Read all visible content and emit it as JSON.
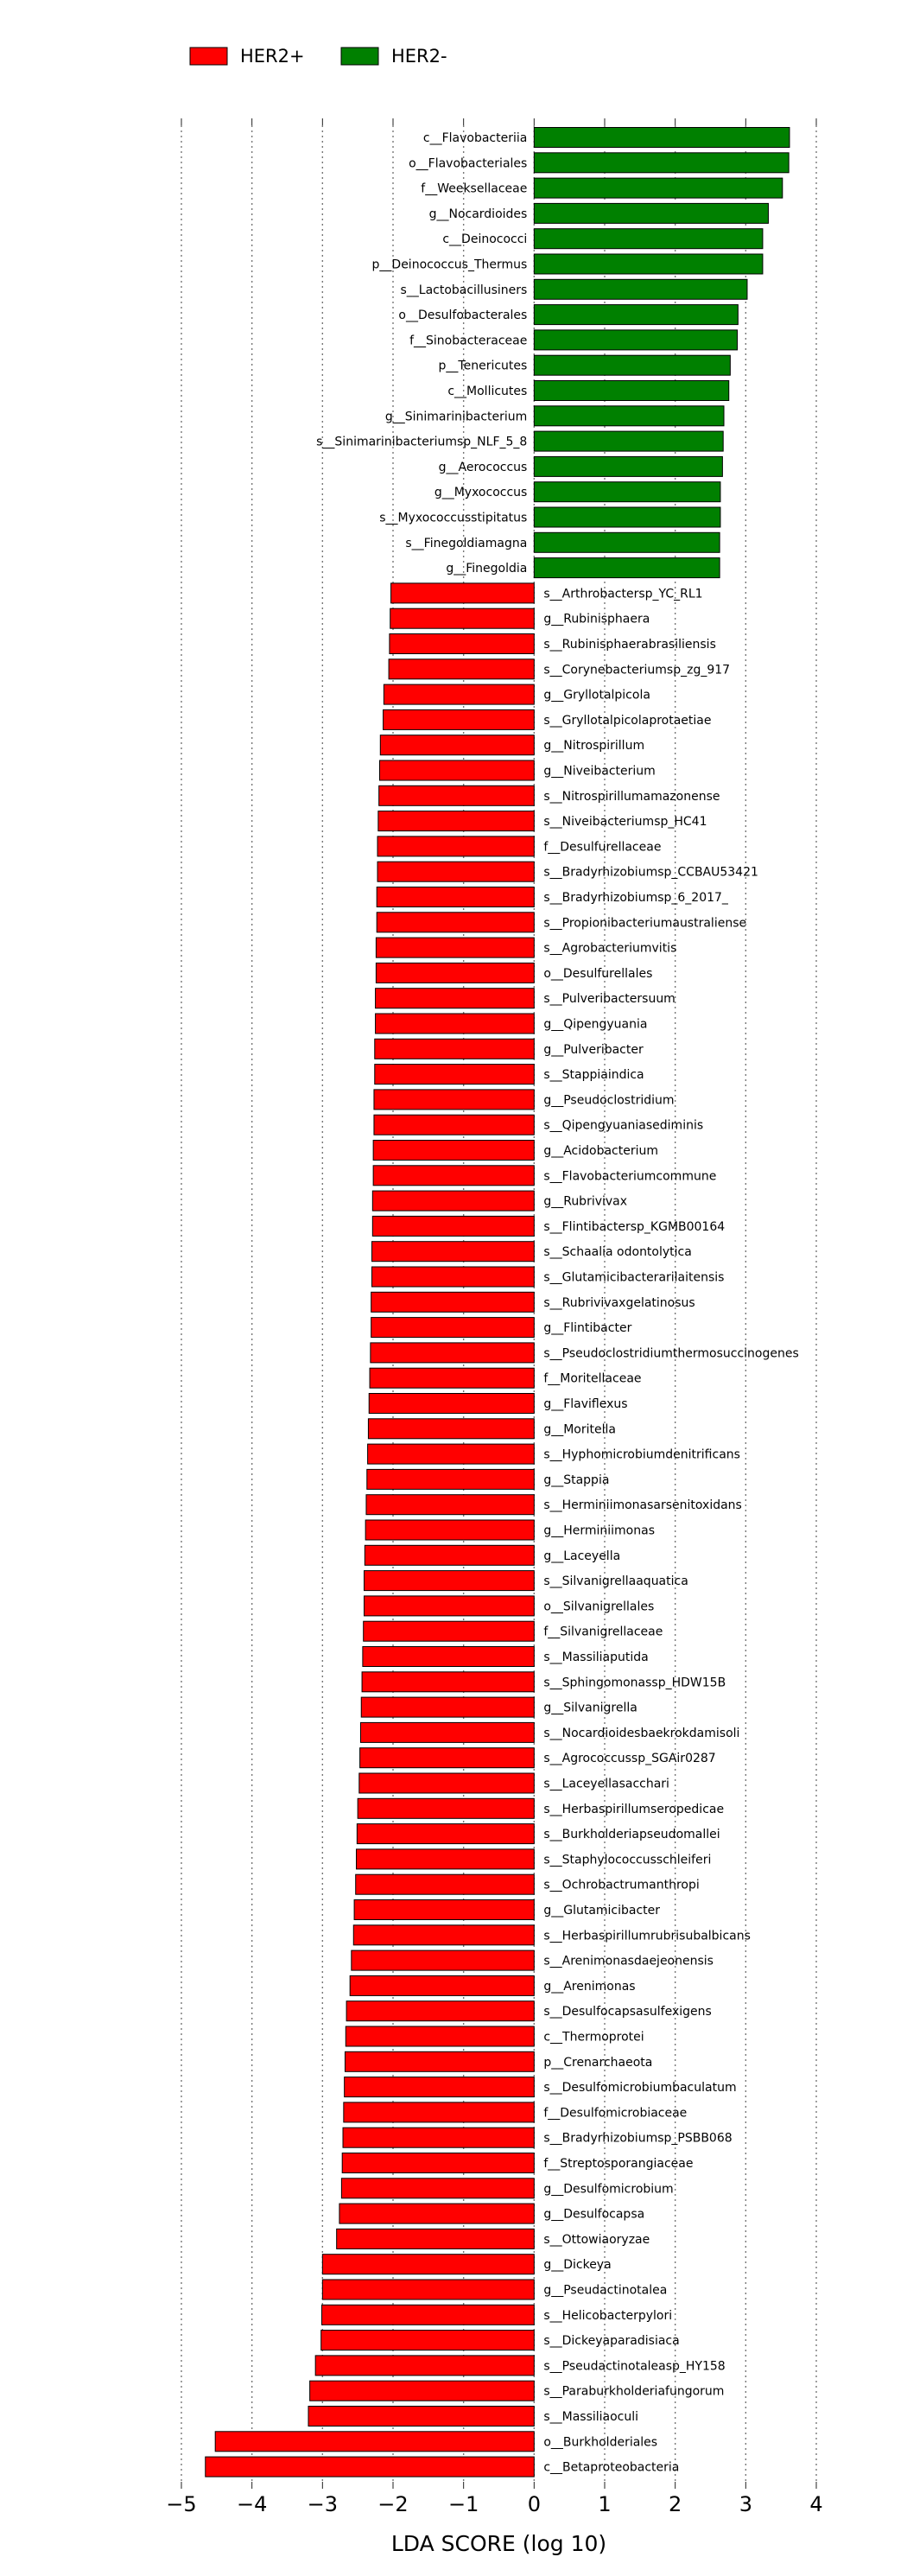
{
  "legend": {
    "position": "top-left",
    "items": [
      {
        "label": "HER2+",
        "color": "#ff0000"
      },
      {
        "label": "HER2-",
        "color": "#008000"
      }
    ]
  },
  "chart_data": {
    "type": "bar",
    "orientation": "horizontal",
    "xlabel": "LDA SCORE (log 10)",
    "xlim": [
      -5,
      4
    ],
    "xticks": [
      -5,
      -4,
      -3,
      -2,
      -1,
      0,
      1,
      2,
      3,
      4
    ],
    "grid": "vertical dotted",
    "series": [
      {
        "name": "HER2-",
        "color": "#008000",
        "categories": [
          "c__Flavobacteriia",
          "o__Flavobacteriales",
          "f__Weeksellaceae",
          "g__Nocardioides",
          "c__Deinococci",
          "p__Deinococcus_Thermus",
          "s__Lactobacillusiners",
          "o__Desulfobacterales",
          "f__Sinobacteraceae",
          "p__Tenericutes",
          "c__Mollicutes",
          "g__Sinimarinibacterium",
          "s__Sinimarinibacteriumsp_NLF_5_8",
          "g__Aerococcus",
          "g__Myxococcus",
          "s__Myxococcusstipitatus",
          "s__Finegoldiamagna",
          "g__Finegoldia"
        ],
        "values": [
          3.62,
          3.61,
          3.52,
          3.32,
          3.24,
          3.24,
          3.02,
          2.89,
          2.88,
          2.78,
          2.76,
          2.69,
          2.68,
          2.67,
          2.64,
          2.64,
          2.63,
          2.63
        ]
      },
      {
        "name": "HER2+",
        "color": "#ff0000",
        "categories": [
          "s__Arthrobactersp_YC_RL1",
          "g__Rubinisphaera",
          "s__Rubinisphaerabrasiliensis",
          "s__Corynebacteriumsp_zg_917",
          "g__Gryllotalpicola",
          "s__Gryllotalpicolaprotaetiae",
          "g__Nitrospirillum",
          "g__Niveibacterium",
          "s__Nitrospirillumamazonense",
          "s__Niveibacteriumsp_HC41",
          "f__Desulfurellaceae",
          "s__Bradyrhizobiumsp_CCBAU53421",
          "s__Bradyrhizobiumsp_6_2017_",
          "s__Propionibacteriumaustraliense",
          "s__Agrobacteriumvitis",
          "o__Desulfurellales",
          "s__Pulveribactersuum",
          "g__Qipengyuania",
          "g__Pulveribacter",
          "s__Stappiaindica",
          "g__Pseudoclostridium",
          "s__Qipengyuaniasediminis",
          "g__Acidobacterium",
          "s__Flavobacteriumcommune",
          "g__Rubrivivax",
          "s__Flintibactersp_KGMB00164",
          "s__Schaalia odontolytica",
          "s__Glutamicibacterarilaitensis",
          "s__Rubrivivaxgelatinosus",
          "g__Flintibacter",
          "s__Pseudoclostridiumthermosuccinogenes",
          "f__Moritellaceae",
          "g__Flaviflexus",
          "g__Moritella",
          "s__Hyphomicrobiumdenitrificans",
          "g__Stappia",
          "s__Herminiimonasarsenitoxidans",
          "g__Herminiimonas",
          "g__Laceyella",
          "s__Silvanigrellaaquatica",
          "o__Silvanigrellales",
          "f__Silvanigrellaceae",
          "s__Massiliaputida",
          "s__Sphingomonassp_HDW15B",
          "g__Silvanigrella",
          "s__Nocardioidesbaekrokdamisoli",
          "s__Agrococcussp_SGAir0287",
          "s__Laceyellasacchari",
          "s__Herbaspirillumseropedicae",
          "s__Burkholderiapseudomallei",
          "s__Staphylococcusschleiferi",
          "s__Ochrobactrumanthropi",
          "g__Glutamicibacter",
          "s__Herbaspirillumrubrisubalbicans",
          "s__Arenimonasdaejeonensis",
          "g__Arenimonas",
          "s__Desulfocapsasulfexigens",
          "c__Thermoprotei",
          "p__Crenarchaeota",
          "s__Desulfomicrobiumbaculatum",
          "f__Desulfomicrobiaceae",
          "s__Bradyrhizobiumsp_PSBB068",
          "f__Streptosporangiaceae",
          "g__Desulfomicrobium",
          "g__Desulfocapsa",
          "s__Ottowiaoryzae",
          "g__Dickeya",
          "g__Pseudactinotalea",
          "s__Helicobacterpylori",
          "s__Dickeyaparadisiaca",
          "s__Pseudactinotaleasp_HY158",
          "s__Paraburkholderiafungorum",
          "s__Massiliaoculi",
          "o__Burkholderiales",
          "c__Betaproteobacteria"
        ],
        "values": [
          -2.03,
          -2.04,
          -2.05,
          -2.06,
          -2.13,
          -2.14,
          -2.18,
          -2.19,
          -2.2,
          -2.21,
          -2.22,
          -2.22,
          -2.23,
          -2.23,
          -2.24,
          -2.24,
          -2.25,
          -2.25,
          -2.26,
          -2.26,
          -2.27,
          -2.27,
          -2.28,
          -2.28,
          -2.29,
          -2.29,
          -2.3,
          -2.3,
          -2.31,
          -2.31,
          -2.32,
          -2.33,
          -2.34,
          -2.35,
          -2.36,
          -2.37,
          -2.38,
          -2.39,
          -2.4,
          -2.41,
          -2.41,
          -2.42,
          -2.43,
          -2.44,
          -2.45,
          -2.46,
          -2.47,
          -2.48,
          -2.5,
          -2.51,
          -2.52,
          -2.53,
          -2.55,
          -2.56,
          -2.59,
          -2.61,
          -2.66,
          -2.67,
          -2.68,
          -2.69,
          -2.7,
          -2.71,
          -2.72,
          -2.73,
          -2.76,
          -2.8,
          -3.0,
          -3.0,
          -3.01,
          -3.02,
          -3.1,
          -3.18,
          -3.2,
          -4.52,
          -4.66
        ]
      }
    ]
  }
}
